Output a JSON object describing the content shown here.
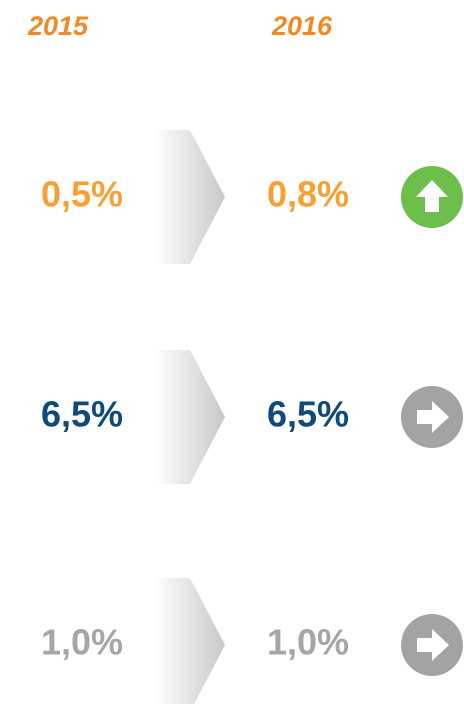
{
  "header": {
    "years": [
      "2015",
      "2016"
    ]
  },
  "rows": [
    {
      "from": "0,5%",
      "to": "0,8%",
      "color": "#f7a035",
      "trend": "up",
      "icon_color": "#6cbf4b"
    },
    {
      "from": "6,5%",
      "to": "6,5%",
      "color": "#0f4a7a",
      "trend": "flat",
      "icon_color": "#a3a3a3"
    },
    {
      "from": "1,0%",
      "to": "1,0%",
      "color": "#a6a6a6",
      "trend": "flat",
      "icon_color": "#a3a3a3"
    }
  ]
}
